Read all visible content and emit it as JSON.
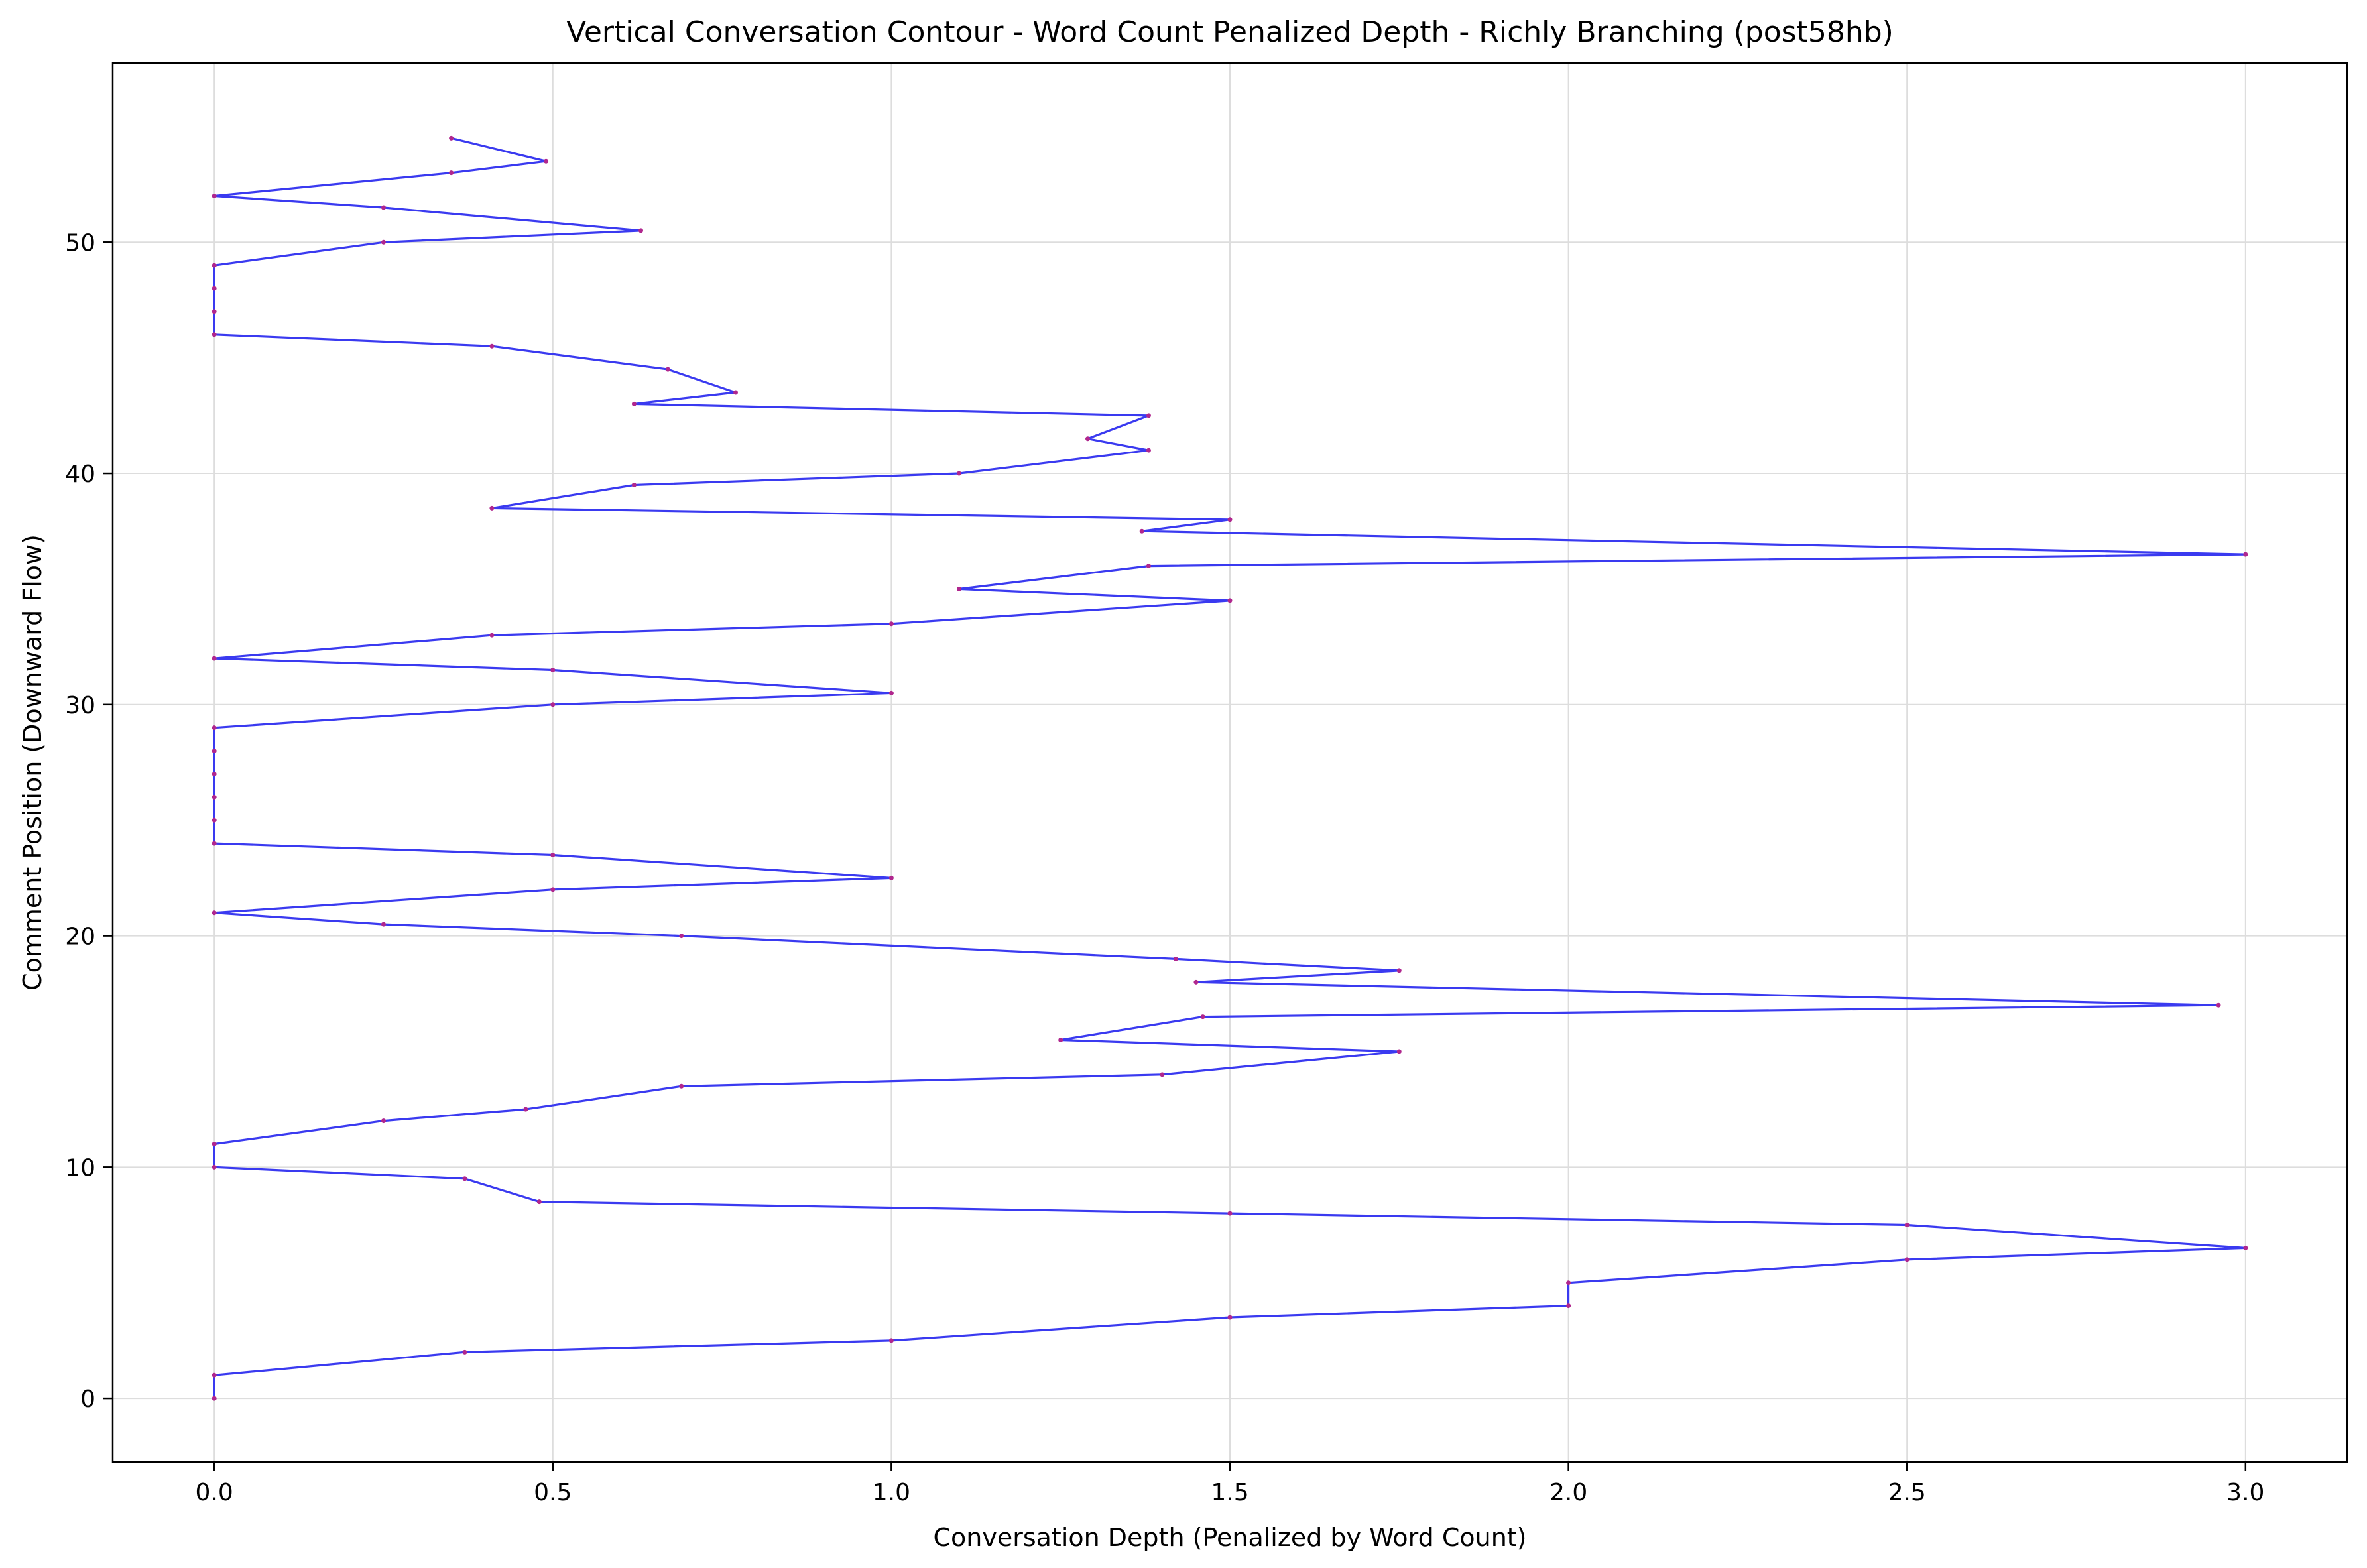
{
  "chart_data": {
    "type": "line",
    "title": "Vertical Conversation Contour - Word Count Penalized Depth - Richly Branching (post58hb)",
    "xlabel": "Conversation Depth (Penalized by Word Count)",
    "ylabel": "Comment Position (Downward Flow)",
    "xlim": [
      -0.15,
      3.15
    ],
    "ylim": [
      -2.75,
      57.75
    ],
    "xticks": [
      0.0,
      0.5,
      1.0,
      1.5,
      2.0,
      2.5,
      3.0
    ],
    "xtick_labels": [
      "0.0",
      "0.5",
      "1.0",
      "1.5",
      "2.0",
      "2.5",
      "3.0"
    ],
    "yticks": [
      0,
      10,
      20,
      30,
      40,
      50
    ],
    "ytick_labels": [
      "0",
      "10",
      "20",
      "30",
      "40",
      "50"
    ],
    "grid": true,
    "line_color": "#3a3af0",
    "marker_color": "#b0278e",
    "series": [
      {
        "points": [
          [
            0.0,
            0.0
          ],
          [
            0.0,
            1.0
          ],
          [
            0.37,
            2.0
          ],
          [
            1.0,
            2.5
          ],
          [
            1.5,
            3.5
          ],
          [
            2.0,
            4.0
          ],
          [
            2.0,
            5.0
          ],
          [
            2.5,
            6.0
          ],
          [
            3.0,
            6.5
          ],
          [
            2.5,
            7.5
          ],
          [
            1.5,
            8.0
          ],
          [
            0.48,
            8.5
          ],
          [
            0.37,
            9.5
          ],
          [
            0.0,
            10.0
          ],
          [
            0.0,
            11.0
          ],
          [
            0.25,
            12.0
          ],
          [
            0.46,
            12.5
          ],
          [
            0.69,
            13.5
          ],
          [
            1.4,
            14.0
          ],
          [
            1.75,
            15.0
          ],
          [
            1.25,
            15.5
          ],
          [
            1.46,
            16.5
          ],
          [
            2.96,
            17.0
          ],
          [
            1.45,
            18.0
          ],
          [
            1.75,
            18.5
          ],
          [
            1.42,
            19.0
          ],
          [
            0.69,
            20.0
          ],
          [
            0.25,
            20.5
          ],
          [
            0.0,
            21.0
          ],
          [
            0.5,
            22.0
          ],
          [
            1.0,
            22.5
          ],
          [
            0.5,
            23.5
          ],
          [
            0.0,
            24.0
          ],
          [
            0.0,
            25.0
          ],
          [
            0.0,
            26.0
          ],
          [
            0.0,
            27.0
          ],
          [
            0.0,
            28.0
          ],
          [
            0.0,
            29.0
          ],
          [
            0.5,
            30.0
          ],
          [
            1.0,
            30.5
          ],
          [
            0.5,
            31.5
          ],
          [
            0.0,
            32.0
          ],
          [
            0.41,
            33.0
          ],
          [
            1.0,
            33.5
          ],
          [
            1.5,
            34.5
          ],
          [
            1.1,
            35.0
          ],
          [
            1.38,
            36.0
          ],
          [
            3.0,
            36.5
          ],
          [
            1.37,
            37.5
          ],
          [
            1.5,
            38.0
          ],
          [
            0.41,
            38.5
          ],
          [
            0.62,
            39.5
          ],
          [
            1.1,
            40.0
          ],
          [
            1.38,
            41.0
          ],
          [
            1.29,
            41.5
          ],
          [
            1.38,
            42.5
          ],
          [
            0.62,
            43.0
          ],
          [
            0.77,
            43.5
          ],
          [
            0.67,
            44.5
          ],
          [
            0.41,
            45.5
          ],
          [
            0.0,
            46.0
          ],
          [
            0.0,
            47.0
          ],
          [
            0.0,
            48.0
          ],
          [
            0.0,
            49.0
          ],
          [
            0.25,
            50.0
          ],
          [
            0.63,
            50.5
          ],
          [
            0.25,
            51.5
          ],
          [
            0.0,
            52.0
          ],
          [
            0.35,
            53.0
          ],
          [
            0.49,
            53.5
          ],
          [
            0.35,
            54.5
          ]
        ]
      }
    ]
  }
}
